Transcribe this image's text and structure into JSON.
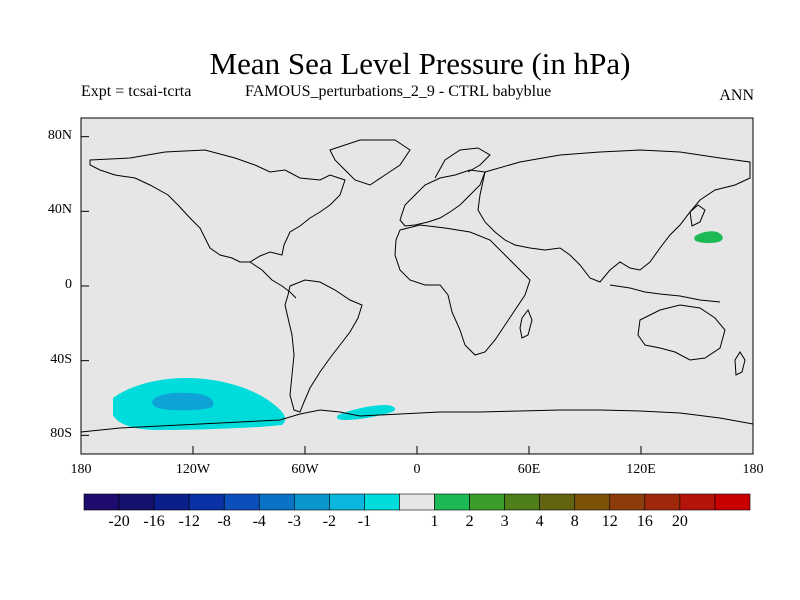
{
  "title": "Mean Sea Level Pressure (in hPa)",
  "expt_label": "Expt = tcsai-tcrta",
  "run_label": "FAMOUS_perturbations_2_9 - CTRL babyblue",
  "season": "ANN",
  "colors": {
    "ocean": "#e6e6e6",
    "coast": "#000000",
    "anom_neg_2": "#00dcdc",
    "anom_neg_3": "#0ea2d6",
    "anom_pos_1": "#1db954"
  },
  "axes": {
    "lat_ticks": [
      "80N",
      "40N",
      "0",
      "40S",
      "80S"
    ],
    "lon_ticks": [
      "180",
      "120W",
      "60W",
      "0",
      "60E",
      "120E",
      "180"
    ]
  },
  "colorbar": {
    "colors": [
      "#1f0a6e",
      "#12126e",
      "#0a1f8c",
      "#0a32a6",
      "#0a4fba",
      "#0a73c6",
      "#0a96cc",
      "#0ab6dc",
      "#00dcdc",
      "#e6e6e6",
      "#1db954",
      "#3c9e2a",
      "#4e7f18",
      "#646410",
      "#7c5208",
      "#8c3c0a",
      "#a0280a",
      "#b4140a",
      "#c80000"
    ],
    "labels": [
      "-20",
      "-16",
      "-12",
      "-8",
      "-4",
      "-3",
      "-2",
      "-1",
      "1",
      "2",
      "3",
      "4",
      "8",
      "12",
      "16",
      "20"
    ]
  }
}
